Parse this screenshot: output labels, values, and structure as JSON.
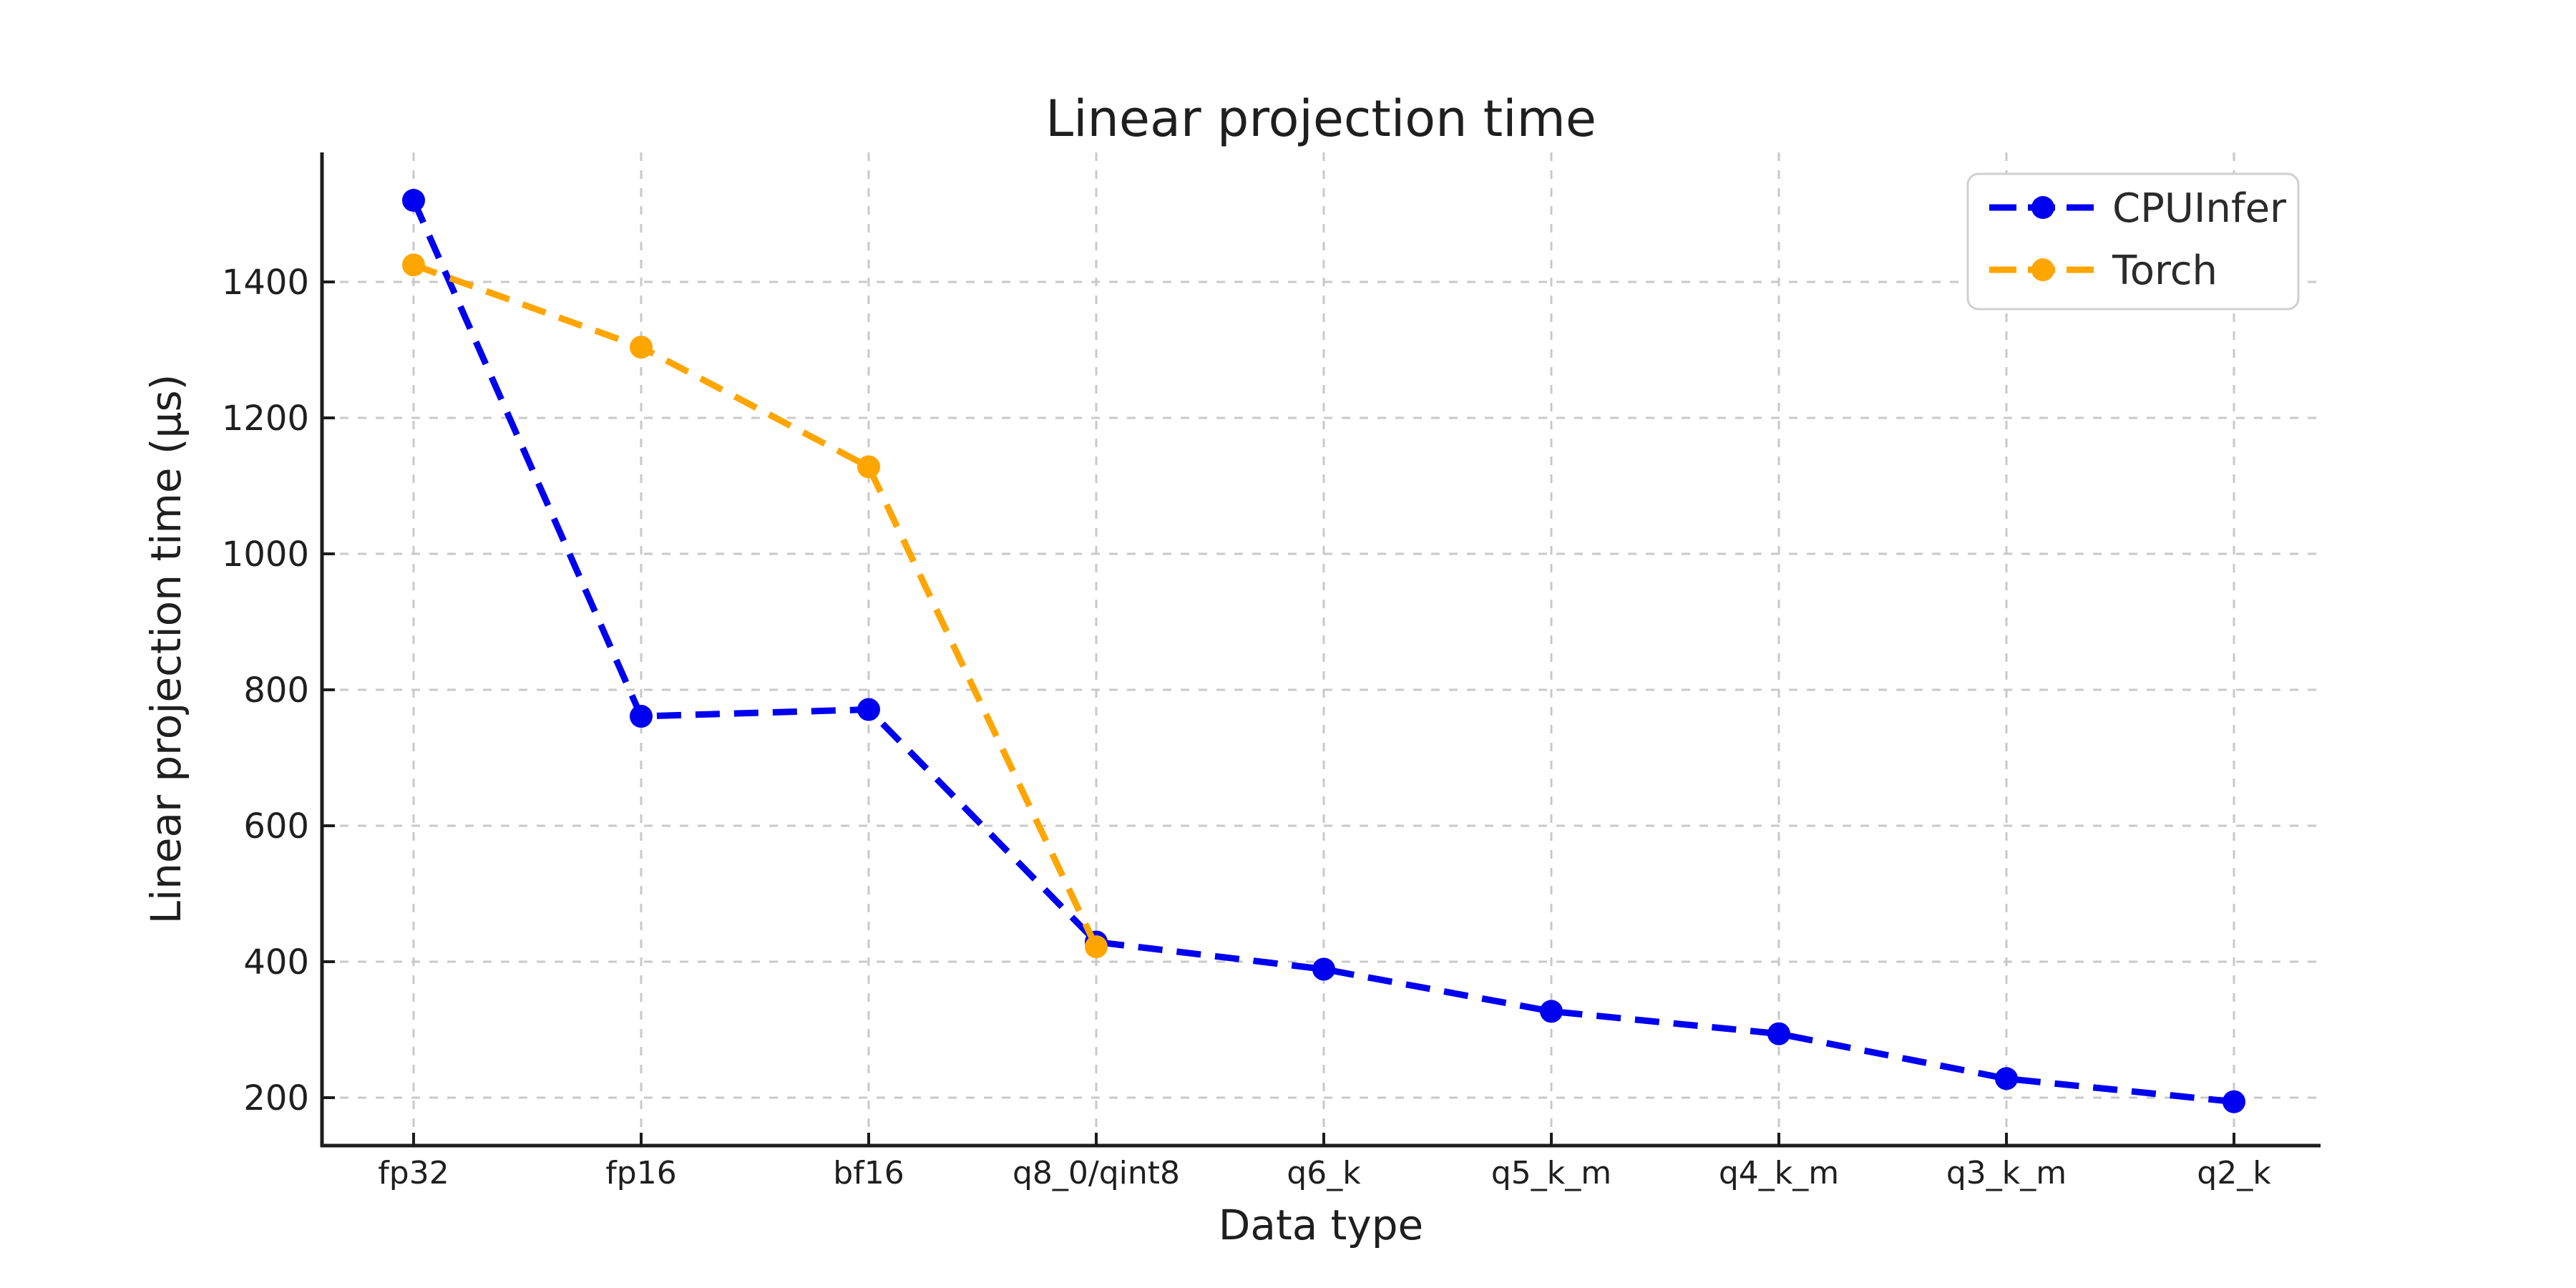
{
  "figure": {
    "background": "#ffffff"
  },
  "chart_data": {
    "type": "line",
    "title": "Linear projection time",
    "xlabel": "Data type",
    "ylabel": "Linear projection time (μs)",
    "categories": [
      "fp32",
      "fp16",
      "bf16",
      "q8_0/qint8",
      "q6_k",
      "q5_k_m",
      "q4_k_m",
      "q3_k_m",
      "q2_k"
    ],
    "yticks": [
      200,
      400,
      600,
      800,
      1000,
      1200,
      1400
    ],
    "ylim": [
      127,
      1588
    ],
    "grid": true,
    "grid_style": "dashed",
    "line_style": "dashed",
    "marker": "circle",
    "legend_position": "upper right",
    "series": [
      {
        "name": "CPUInfer",
        "color": "#0000f0",
        "values": [
          1520,
          761,
          771,
          429,
          389,
          327,
          294,
          228,
          194
        ]
      },
      {
        "name": "Torch",
        "color": "#ffa500",
        "values": [
          1425,
          1304,
          1128,
          422,
          null,
          null,
          null,
          null,
          null
        ]
      }
    ],
    "colors": {
      "grid": "#c9c9c9",
      "spine": "#1c1c1c",
      "tick": "#1c1c1c",
      "text": "#1f1f1f",
      "legend_border": "#d0d0d0",
      "legend_fill": "#ffffff"
    }
  }
}
